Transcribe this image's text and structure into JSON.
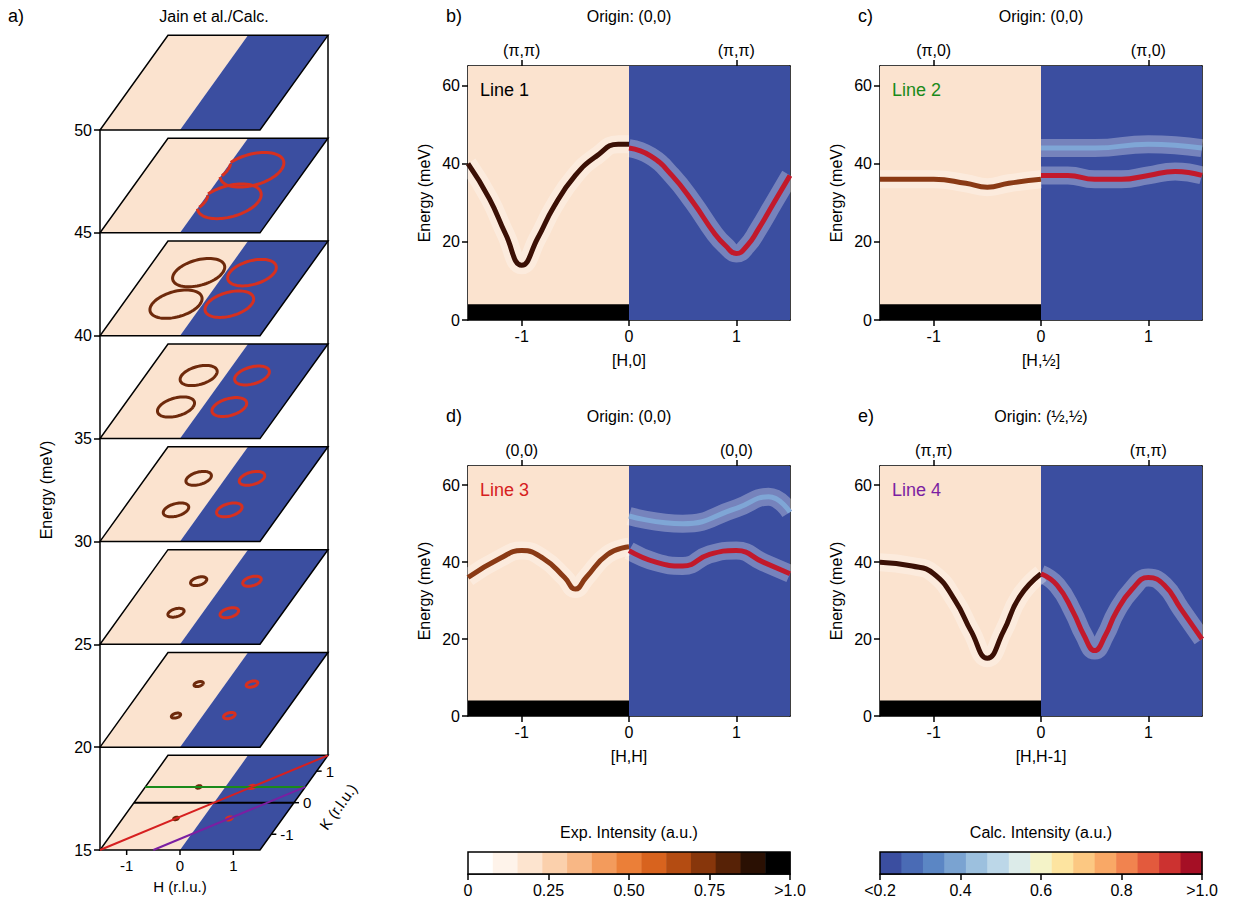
{
  "chart_data": [
    {
      "type": "slices",
      "panel_label": "a)",
      "title": "Jain et al./Calc.",
      "ylabel": "Energy (meV)",
      "ylim": [
        15,
        50
      ],
      "yticks": [
        15,
        20,
        25,
        30,
        35,
        40,
        45,
        50
      ],
      "xlabel": "H (r.l.u.)",
      "zlabel": "K (r.l.u.)",
      "h_lim": [
        -1.5,
        1.5
      ],
      "h_ticks": [
        -1,
        0,
        1
      ],
      "k_lim": [
        -1.5,
        1.5
      ],
      "k_ticks": [
        -1,
        0,
        1
      ],
      "split": 0,
      "exp_color": "#fbe3cf",
      "calc_color": "#3b4ea0",
      "exp_ring_color": "#6e2a0c",
      "calc_ring_color": "#d7301f",
      "ring_centers": [
        [
          -0.5,
          -0.5
        ],
        [
          0.5,
          -0.5
        ],
        [
          -0.5,
          0.5
        ],
        [
          0.5,
          0.5
        ]
      ],
      "slices": [
        {
          "energy": 15,
          "exp_ring": 0.04,
          "calc_ring": 0.05
        },
        {
          "energy": 20,
          "exp_ring": 0.08,
          "calc_ring": 0.1
        },
        {
          "energy": 25,
          "exp_ring": 0.14,
          "calc_ring": 0.16
        },
        {
          "energy": 30,
          "exp_ring": 0.22,
          "calc_ring": 0.22
        },
        {
          "energy": 35,
          "exp_ring": 0.32,
          "calc_ring": 0.3
        },
        {
          "energy": 40,
          "exp_ring": 0.45,
          "calc_ring": 0.42
        },
        {
          "energy": 45,
          "exp_ring": null,
          "calc_ring": 0.55
        },
        {
          "energy": 50,
          "exp_ring": null,
          "calc_ring": null
        }
      ],
      "cuts": [
        {
          "color": "#000000",
          "points": [
            [
              -1.5,
              0
            ],
            [
              1.5,
              0
            ]
          ]
        },
        {
          "color": "#1a8a1a",
          "points": [
            [
              -1.5,
              0.5
            ],
            [
              1.5,
              0.5
            ]
          ]
        },
        {
          "color": "#d62020",
          "points": [
            [
              -1.5,
              -1.5
            ],
            [
              1.5,
              1.5
            ]
          ]
        },
        {
          "color": "#7b1fa2",
          "points": [
            [
              -0.5,
              -1.5
            ],
            [
              1.5,
              0.5
            ]
          ]
        }
      ]
    },
    {
      "type": "line",
      "panel_label": "b)",
      "title": "Origin: (0,0)",
      "line_label": "Line 1",
      "line_color": "#000000",
      "xlabel": "[H,0]",
      "ylabel": "Energy (meV)",
      "xlim": [
        -1.5,
        1.5
      ],
      "xticks": [
        -1,
        0,
        1
      ],
      "ylim": [
        0,
        65
      ],
      "yticks": [
        0,
        20,
        40,
        60
      ],
      "top_ticks": [
        {
          "value": -1,
          "label": "(π,π)"
        },
        {
          "value": 1,
          "label": "(π,π)"
        }
      ],
      "regions": [
        {
          "x": [
            -1.5,
            0
          ],
          "y": [
            0,
            65
          ],
          "color": "#fbe3cf"
        },
        {
          "x": [
            0,
            1.5
          ],
          "y": [
            0,
            65
          ],
          "color": "#3b4ea0"
        },
        {
          "x": [
            -1.5,
            0
          ],
          "y": [
            0,
            4
          ],
          "color": "#000000"
        }
      ],
      "series": [
        {
          "color": "#3b1005",
          "x": [
            -1.5,
            -1.3,
            -1.15,
            -1.0,
            -0.85,
            -0.7,
            -0.5,
            -0.3,
            -0.1,
            0
          ],
          "values": [
            40,
            31,
            22,
            14,
            21,
            29,
            37,
            42,
            45,
            45
          ]
        },
        {
          "color": "#c2192b",
          "x": [
            0,
            0.2,
            0.4,
            0.6,
            0.8,
            0.9,
            1.0,
            1.1,
            1.2,
            1.35,
            1.5
          ],
          "values": [
            44,
            42,
            37,
            30,
            22,
            19,
            17,
            19,
            23,
            30,
            37
          ]
        }
      ]
    },
    {
      "type": "line",
      "panel_label": "c)",
      "title": "Origin: (0,0)",
      "line_label": "Line 2",
      "line_color": "#1a8a1a",
      "xlabel": "[H,½]",
      "ylabel": "Energy (meV)",
      "xlim": [
        -1.5,
        1.5
      ],
      "xticks": [
        -1,
        0,
        1
      ],
      "ylim": [
        0,
        65
      ],
      "yticks": [
        0,
        20,
        40,
        60
      ],
      "top_ticks": [
        {
          "value": -1,
          "label": "(π,0)"
        },
        {
          "value": 1,
          "label": "(π,0)"
        }
      ],
      "regions": [
        {
          "x": [
            -1.5,
            0
          ],
          "y": [
            0,
            65
          ],
          "color": "#fbe3cf"
        },
        {
          "x": [
            0,
            1.5
          ],
          "y": [
            0,
            65
          ],
          "color": "#3b4ea0"
        },
        {
          "x": [
            -1.5,
            0
          ],
          "y": [
            0,
            4
          ],
          "color": "#000000"
        }
      ],
      "series": [
        {
          "color": "#8a3a15",
          "x": [
            -1.5,
            -1,
            -0.7,
            -0.5,
            -0.3,
            0
          ],
          "values": [
            36,
            36,
            35,
            34,
            35,
            36
          ]
        },
        {
          "color": "#c2192b",
          "x": [
            0,
            0.25,
            0.5,
            0.75,
            1,
            1.25,
            1.5
          ],
          "values": [
            37,
            37,
            36,
            36,
            37,
            38,
            37
          ]
        },
        {
          "color": "#7fa6d6",
          "x": [
            0,
            0.5,
            1,
            1.5
          ],
          "values": [
            44,
            44,
            45,
            44
          ]
        }
      ]
    },
    {
      "type": "line",
      "panel_label": "d)",
      "title": "Origin: (0,0)",
      "line_label": "Line 3",
      "line_color": "#d62020",
      "xlabel": "[H,H]",
      "ylabel": "Energy (meV)",
      "xlim": [
        -1.5,
        1.5
      ],
      "xticks": [
        -1,
        0,
        1
      ],
      "ylim": [
        0,
        65
      ],
      "yticks": [
        0,
        20,
        40,
        60
      ],
      "top_ticks": [
        {
          "value": -1,
          "label": "(0,0)"
        },
        {
          "value": 1,
          "label": "(0,0)"
        }
      ],
      "regions": [
        {
          "x": [
            -1.5,
            0
          ],
          "y": [
            0,
            65
          ],
          "color": "#fbe3cf"
        },
        {
          "x": [
            0,
            1.5
          ],
          "y": [
            0,
            65
          ],
          "color": "#3b4ea0"
        },
        {
          "x": [
            -1.5,
            0
          ],
          "y": [
            0,
            4
          ],
          "color": "#000000"
        }
      ],
      "series": [
        {
          "color": "#8a3a15",
          "x": [
            -1.5,
            -1.2,
            -1,
            -0.8,
            -0.6,
            -0.5,
            -0.4,
            -0.2,
            0
          ],
          "values": [
            36,
            41,
            43,
            41,
            36,
            33,
            36,
            42,
            44
          ]
        },
        {
          "color": "#c2192b",
          "x": [
            0,
            0.25,
            0.5,
            0.75,
            1,
            1.25,
            1.5
          ],
          "values": [
            43,
            40,
            39,
            42,
            43,
            40,
            37
          ]
        },
        {
          "color": "#7fa6d6",
          "x": [
            0,
            0.5,
            1,
            1.3,
            1.5
          ],
          "values": [
            52,
            50,
            54,
            57,
            53
          ]
        }
      ]
    },
    {
      "type": "line",
      "panel_label": "e)",
      "title": "Origin: (½,½)",
      "line_label": "Line 4",
      "line_color": "#7b1fa2",
      "xlabel": "[H,H-1]",
      "ylabel": "Energy (meV)",
      "xlim": [
        -1.5,
        1.5
      ],
      "xticks": [
        -1,
        0,
        1
      ],
      "ylim": [
        0,
        65
      ],
      "yticks": [
        0,
        20,
        40,
        60
      ],
      "top_ticks": [
        {
          "value": -1,
          "label": "(π,π)"
        },
        {
          "value": 1,
          "label": "(π,π)"
        }
      ],
      "regions": [
        {
          "x": [
            -1.5,
            0
          ],
          "y": [
            0,
            65
          ],
          "color": "#fbe3cf"
        },
        {
          "x": [
            0,
            1.5
          ],
          "y": [
            0,
            65
          ],
          "color": "#3b4ea0"
        },
        {
          "x": [
            -1.5,
            0
          ],
          "y": [
            0,
            4
          ],
          "color": "#000000"
        }
      ],
      "series": [
        {
          "color": "#3b1005",
          "x": [
            -1.5,
            -1.2,
            -1,
            -0.8,
            -0.65,
            -0.5,
            -0.35,
            -0.2,
            0
          ],
          "values": [
            40,
            39,
            37,
            30,
            22,
            15,
            22,
            31,
            37
          ]
        },
        {
          "color": "#c2192b",
          "x": [
            0,
            0.15,
            0.3,
            0.4,
            0.5,
            0.6,
            0.7,
            0.85,
            1.0,
            1.15,
            1.3,
            1.5
          ],
          "values": [
            37,
            34,
            27,
            21,
            17,
            21,
            27,
            33,
            36,
            34,
            28,
            20
          ]
        }
      ]
    },
    {
      "type": "colorbar",
      "title": "Exp. Intensity (a.u.)",
      "xlim": [
        0,
        1
      ],
      "xticks": [
        0,
        0.25,
        {
          "value": 0.5,
          "label": "0.50"
        },
        0.75,
        {
          "value": 1,
          "label": ">1.0"
        }
      ],
      "colors": [
        "#ffffff",
        "#fef3ea",
        "#fde4cf",
        "#fbd0ac",
        "#f8b785",
        "#f39b5c",
        "#eb7f38",
        "#d8631e",
        "#b44c12",
        "#87360b",
        "#572206",
        "#2a1003",
        "#000000"
      ]
    },
    {
      "type": "colorbar",
      "title": "Calc. Intensity (a.u.)",
      "xlim": [
        0.2,
        1
      ],
      "xticks": [
        {
          "value": 0.2,
          "label": "<0.2"
        },
        0.4,
        0.6,
        0.8,
        {
          "value": 1,
          "label": ">1.0"
        }
      ],
      "colors": [
        "#3b4ea0",
        "#4a6bb5",
        "#5b86c4",
        "#7aa3d1",
        "#9cc0de",
        "#bcd7e8",
        "#dcebe9",
        "#f4f3c8",
        "#fde4a0",
        "#fcc882",
        "#f9a866",
        "#f1834f",
        "#e35a3d",
        "#cc3230",
        "#a50f25"
      ]
    }
  ]
}
